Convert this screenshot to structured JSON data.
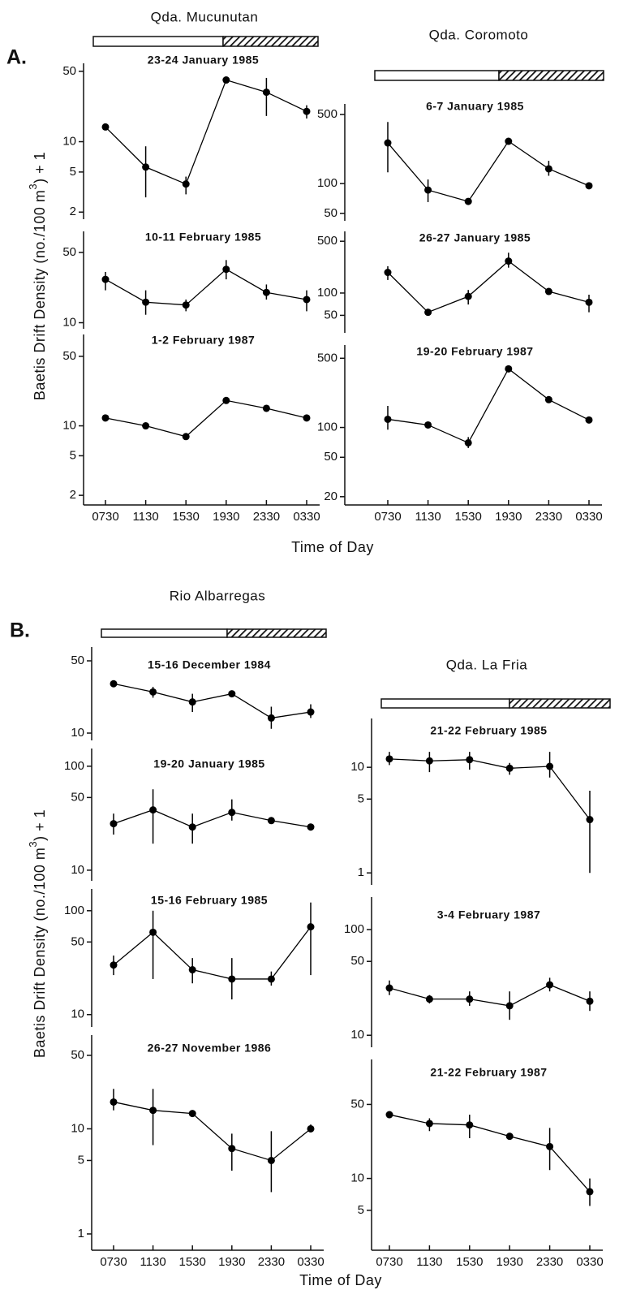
{
  "figure": {
    "sections": [
      {
        "label": "A.",
        "sites": [
          "Qda. Mucunutan",
          "Qda. Coromoto"
        ],
        "y_label": [
          "Baetis Drift Density (no./100 m",
          "3",
          ") + 1"
        ],
        "x_label": "Time of Day"
      },
      {
        "label": "B.",
        "sites": [
          "Rio Albarregas",
          "Qda. La Fria"
        ],
        "y_label": [
          "Baetis Drift Density (no./100 m",
          "3",
          ") + 1"
        ],
        "x_label": "Time of Day"
      }
    ]
  },
  "chart_data": [
    {
      "type": "line",
      "title": "23-24 January 1985",
      "values": [
        14,
        5.6,
        3.8,
        41,
        31,
        20
      ],
      "error_bars": [
        null,
        [
          2.8,
          9
        ],
        [
          3,
          4.5
        ],
        null,
        [
          18,
          43
        ],
        [
          17,
          23
        ]
      ],
      "ylim": [
        1.7,
        60
      ],
      "yticks": [
        2,
        5,
        10,
        50
      ],
      "log_scale": true,
      "color": "#000000"
    },
    {
      "type": "line",
      "title": "10-11 February 1985",
      "values": [
        27,
        16,
        15,
        34,
        20,
        17
      ],
      "error_bars": [
        [
          21,
          32
        ],
        [
          12,
          21
        ],
        [
          13,
          17
        ],
        [
          27,
          42
        ],
        [
          17,
          24
        ],
        [
          13,
          21
        ]
      ],
      "ylim": [
        8.7,
        81
      ],
      "yticks": [
        10,
        50
      ],
      "log_scale": true,
      "color": "#000000"
    },
    {
      "type": "line",
      "title": "1-2 February 1987",
      "categories": [
        "0730",
        "1130",
        "1530",
        "1930",
        "2330",
        "0330"
      ],
      "values": [
        12,
        10,
        7.8,
        18,
        15,
        12
      ],
      "error_bars": [
        null,
        null,
        null,
        null,
        null,
        null
      ],
      "ylim": [
        1.6,
        83
      ],
      "yticks": [
        2,
        5,
        10,
        50
      ],
      "log_scale": true,
      "color": "#000000"
    },
    {
      "type": "line",
      "title": "6-7 January 1985",
      "values": [
        258,
        86,
        66,
        268,
        141,
        95
      ],
      "error_bars": [
        [
          130,
          420
        ],
        [
          65,
          110
        ],
        null,
        null,
        [
          120,
          170
        ],
        null
      ],
      "ylim": [
        42,
        640
      ],
      "yticks": [
        50,
        100,
        500
      ],
      "log_scale": true,
      "color": "#000000"
    },
    {
      "type": "line",
      "title": "26-27 January 1985",
      "values": [
        190,
        55,
        90,
        270,
        105,
        75
      ],
      "error_bars": [
        [
          150,
          230
        ],
        null,
        [
          70,
          110
        ],
        [
          220,
          350
        ],
        null,
        [
          55,
          95
        ]
      ],
      "ylim": [
        29,
        680
      ],
      "yticks": [
        50,
        100,
        500
      ],
      "log_scale": true,
      "color": "#000000"
    },
    {
      "type": "line",
      "title": "19-20 February 1987",
      "categories": [
        "0730",
        "1130",
        "1530",
        "1930",
        "2330",
        "0330"
      ],
      "values": [
        121,
        106,
        70,
        391,
        191,
        119
      ],
      "error_bars": [
        [
          95,
          165
        ],
        null,
        [
          62,
          80
        ],
        null,
        null,
        null
      ],
      "ylim": [
        16.5,
        680
      ],
      "yticks": [
        20,
        50,
        100,
        500
      ],
      "log_scale": true,
      "color": "#000000"
    },
    {
      "type": "line",
      "title": "15-16 December 1984",
      "values": [
        30,
        25,
        20,
        24,
        14,
        16
      ],
      "error_bars": [
        null,
        [
          22,
          28
        ],
        [
          16,
          24
        ],
        null,
        [
          11,
          18
        ],
        [
          14,
          19
        ]
      ],
      "ylim": [
        8.5,
        68
      ],
      "yticks": [
        10,
        50
      ],
      "log_scale": true,
      "color": "#000000"
    },
    {
      "type": "line",
      "title": "19-20 January 1985",
      "values": [
        28,
        38,
        26,
        36,
        30,
        26
      ],
      "error_bars": [
        [
          22,
          35
        ],
        [
          18,
          60
        ],
        [
          18,
          35
        ],
        [
          30,
          48
        ],
        null,
        null
      ],
      "ylim": [
        7.9,
        148
      ],
      "yticks": [
        10,
        50,
        100
      ],
      "log_scale": true,
      "color": "#000000"
    },
    {
      "type": "line",
      "title": "15-16 February 1985",
      "values": [
        30,
        62,
        27,
        22,
        22,
        70
      ],
      "error_bars": [
        [
          24,
          37
        ],
        [
          22,
          100
        ],
        [
          20,
          35
        ],
        [
          14,
          35
        ],
        [
          19,
          26
        ],
        [
          24,
          120
        ]
      ],
      "ylim": [
        7.6,
        162
      ],
      "yticks": [
        10,
        50,
        100
      ],
      "log_scale": true,
      "color": "#000000"
    },
    {
      "type": "line",
      "title": "26-27 November 1986",
      "categories": [
        "0730",
        "1130",
        "1530",
        "1930",
        "2330",
        "0330"
      ],
      "values": [
        18,
        15,
        14,
        6.5,
        5,
        10
      ],
      "error_bars": [
        [
          15,
          24
        ],
        [
          7,
          24
        ],
        null,
        [
          4,
          9
        ],
        [
          2.5,
          9.5
        ],
        [
          9.5,
          11
        ]
      ],
      "ylim": [
        0.7,
        78
      ],
      "yticks": [
        1,
        5,
        10,
        50
      ],
      "log_scale": true,
      "color": "#000000"
    },
    {
      "type": "line",
      "title": "21-22 February 1985",
      "values": [
        12,
        11.5,
        11.8,
        9.8,
        10.2,
        3.2
      ],
      "error_bars": [
        [
          10.5,
          14
        ],
        [
          9,
          14
        ],
        [
          9.5,
          14
        ],
        [
          8.5,
          11
        ],
        [
          8,
          14
        ],
        [
          1,
          6
        ]
      ],
      "ylim": [
        0.77,
        29
      ],
      "yticks": [
        1,
        5,
        10
      ],
      "log_scale": true,
      "color": "#000000"
    },
    {
      "type": "line",
      "title": "3-4 February 1987",
      "values": [
        28,
        22,
        22,
        19,
        30,
        21
      ],
      "error_bars": [
        [
          24,
          33
        ],
        [
          20,
          24
        ],
        [
          19,
          26
        ],
        [
          14,
          26
        ],
        [
          26,
          35
        ],
        [
          17,
          26
        ]
      ],
      "ylim": [
        7.7,
        203
      ],
      "yticks": [
        10,
        50,
        100
      ],
      "log_scale": true,
      "color": "#000000"
    },
    {
      "type": "line",
      "title": "21-22 February 1987",
      "categories": [
        "0730",
        "1130",
        "1530",
        "1930",
        "2330",
        "0330"
      ],
      "values": [
        40,
        33,
        32,
        25,
        20,
        7.5
      ],
      "error_bars": [
        [
          37,
          43
        ],
        [
          28,
          37
        ],
        [
          24,
          40
        ],
        null,
        [
          12,
          30
        ],
        [
          5.5,
          10
        ]
      ],
      "ylim": [
        2.1,
        133
      ],
      "yticks": [
        5,
        10,
        50
      ],
      "log_scale": true,
      "color": "#000000"
    }
  ]
}
